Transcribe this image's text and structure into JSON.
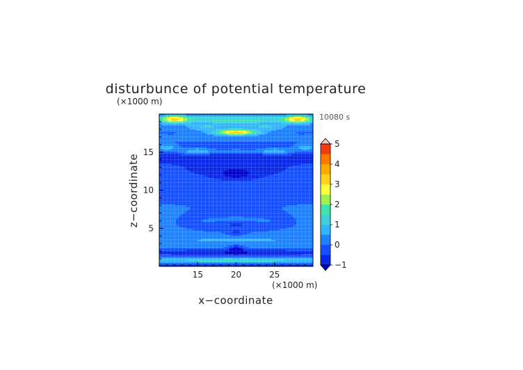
{
  "chart_data": {
    "type": "heatmap",
    "title": "disturbunce of potential temperature",
    "xlabel": "x−coordinate",
    "ylabel": "z−coordinate",
    "x_unit": "(×1000 m)",
    "y_unit": "(×1000 m)",
    "time_label": "10080 s",
    "xlim": [
      10,
      30
    ],
    "ylim": [
      0,
      20
    ],
    "x_ticks": [
      "15",
      "20",
      "25"
    ],
    "y_ticks": [
      "5",
      "10",
      "15"
    ],
    "x_tick_values": [
      15,
      20,
      25
    ],
    "y_tick_values": [
      5,
      10,
      15
    ],
    "grid": true,
    "colorbar": {
      "min": -1,
      "max": 5,
      "step": 0.5,
      "tick_labels": [
        "5",
        "4",
        "3",
        "2",
        "1",
        "0",
        "−1"
      ],
      "tick_values": [
        5,
        4,
        3,
        2,
        1,
        0,
        -1
      ],
      "colors": [
        "#0000c8",
        "#0a28e6",
        "#1450ff",
        "#1e82ff",
        "#32b4ff",
        "#3cd2dc",
        "#3ce6aa",
        "#a0f050",
        "#ffff3c",
        "#ffd21e",
        "#ffaa00",
        "#ff7800",
        "#f03c14",
        "#e6001e",
        "#f06464",
        "#ff9696",
        "#ffc0c0"
      ]
    },
    "features": [
      {
        "x": 20,
        "z": 13,
        "sx": 16,
        "sz": 3.2,
        "value": -0.1
      },
      {
        "x": 20,
        "z": 5.6,
        "sx": 5,
        "sz": 1.4,
        "value": -0.05
      },
      {
        "x": 20,
        "z": 19.2,
        "sx": 14,
        "sz": 0.55,
        "value": 2.1
      },
      {
        "x": 12,
        "z": 19.3,
        "sx": 1.6,
        "sz": 0.45,
        "value": 3.8
      },
      {
        "x": 28,
        "z": 19.3,
        "sx": 1.6,
        "sz": 0.45,
        "value": 3.8
      },
      {
        "x": 20,
        "z": 17.6,
        "sx": 3.0,
        "sz": 0.45,
        "value": 3.9
      },
      {
        "x": 16.2,
        "z": 18.3,
        "sx": 2.6,
        "sz": 0.5,
        "value": 1.6
      },
      {
        "x": 23.8,
        "z": 18.3,
        "sx": 2.6,
        "sz": 0.5,
        "value": 1.6
      },
      {
        "x": 20,
        "z": 16.8,
        "sx": 16,
        "sz": 0.35,
        "value": 0.9
      },
      {
        "x": 15,
        "z": 15.0,
        "sx": 2.2,
        "sz": 0.45,
        "value": 1.8
      },
      {
        "x": 25,
        "z": 15.0,
        "sx": 2.2,
        "sz": 0.45,
        "value": 1.8
      },
      {
        "x": 11,
        "z": 15.6,
        "sx": 1.4,
        "sz": 0.5,
        "value": 1.3
      },
      {
        "x": 29,
        "z": 15.6,
        "sx": 1.4,
        "sz": 0.5,
        "value": 1.3
      },
      {
        "x": 20,
        "z": 15.0,
        "sx": 2.5,
        "sz": 0.4,
        "value": 1.0
      },
      {
        "x": 20,
        "z": 14.2,
        "sx": 16,
        "sz": 0.6,
        "value": -0.5
      },
      {
        "x": 20,
        "z": 12.2,
        "sx": 2.0,
        "sz": 0.6,
        "value": -1.0
      },
      {
        "x": 20,
        "z": 6.2,
        "sx": 3.0,
        "sz": 0.35,
        "value": 0.8
      },
      {
        "x": 16.5,
        "z": 6.0,
        "sx": 1.4,
        "sz": 0.35,
        "value": 0.6
      },
      {
        "x": 23.5,
        "z": 6.0,
        "sx": 1.4,
        "sz": 0.35,
        "value": 0.6
      },
      {
        "x": 20,
        "z": 4.2,
        "sx": 1.2,
        "sz": 0.5,
        "value": -0.9
      },
      {
        "x": 20,
        "z": 3.4,
        "sx": 16,
        "sz": 1.0,
        "value": 1.05
      },
      {
        "x": 18,
        "z": 2.8,
        "sx": 1.0,
        "sz": 0.3,
        "value": 0.7
      },
      {
        "x": 22,
        "z": 2.8,
        "sx": 1.0,
        "sz": 0.3,
        "value": 0.7
      },
      {
        "x": 20,
        "z": 1.8,
        "sx": 16,
        "sz": 0.45,
        "value": -0.5
      },
      {
        "x": 20,
        "z": 2.1,
        "sx": 1.0,
        "sz": 0.6,
        "value": -1.0
      },
      {
        "x": 20,
        "z": 0.8,
        "sx": 16,
        "sz": 0.35,
        "value": 1.9
      },
      {
        "x": 12,
        "z": 0.7,
        "sx": 1.8,
        "sz": 0.35,
        "value": 1.2
      },
      {
        "x": 28,
        "z": 0.7,
        "sx": 1.8,
        "sz": 0.35,
        "value": 1.2
      },
      {
        "x": 20,
        "z": 0.1,
        "sx": 16,
        "sz": 0.25,
        "value": -0.3
      }
    ]
  }
}
